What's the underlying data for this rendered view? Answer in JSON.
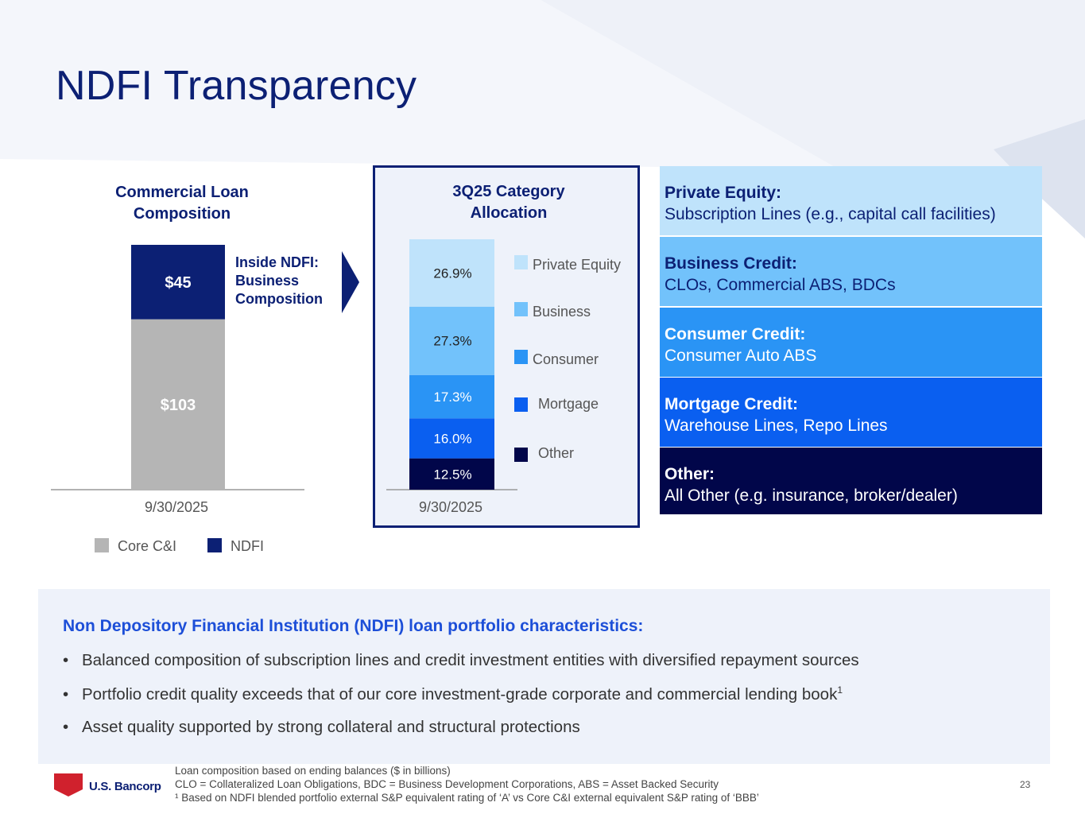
{
  "page_title": "NDFI Transparency",
  "page_number": "23",
  "logo": {
    "name": "U.S. Bancorp"
  },
  "colors": {
    "navy": "#0c2074",
    "core_gray": "#b5b5b5",
    "pe": "#bfe3fb",
    "business": "#72c2fb",
    "consumer": "#2a94f5",
    "mortgage": "#0a5ff0",
    "other": "#01064a",
    "bottom_heading": "#1d4fd8"
  },
  "chart_data": [
    {
      "type": "bar",
      "stacked": true,
      "title": "Commercial Loan Composition",
      "categories": [
        "9/30/2025"
      ],
      "series": [
        {
          "name": "Core C&I",
          "values": [
            103
          ],
          "label": "$103"
        },
        {
          "name": "NDFI",
          "values": [
            45
          ],
          "label": "$45"
        }
      ],
      "ylim": [
        0,
        148
      ],
      "annotation": "Inside NDFI: Business Composition",
      "legend": "bottom"
    },
    {
      "type": "bar",
      "stacked": true,
      "title": "3Q25 Category Allocation",
      "categories": [
        "9/30/2025"
      ],
      "series": [
        {
          "name": "Other",
          "values": [
            12.5
          ],
          "label": "12.5%"
        },
        {
          "name": "Mortgage",
          "values": [
            16.0
          ],
          "label": "16.0%"
        },
        {
          "name": "Consumer",
          "values": [
            17.3
          ],
          "label": "17.3%"
        },
        {
          "name": "Business",
          "values": [
            27.3
          ],
          "label": "27.3%"
        },
        {
          "name": "Private Equity",
          "values": [
            26.9
          ],
          "label": "26.9%"
        }
      ],
      "ylim": [
        0,
        100
      ],
      "legend": "right"
    }
  ],
  "chart1": {
    "title_line1": "Commercial Loan",
    "title_line2": "Composition",
    "xlabel": "9/30/2025",
    "side_line1": "Inside NDFI:",
    "side_line2": "Business",
    "side_line3": "Composition",
    "legend": [
      "Core C&I",
      "NDFI"
    ]
  },
  "chart2": {
    "title_line1": "3Q25 Category",
    "title_line2": "Allocation",
    "xlabel": "9/30/2025",
    "legend": [
      "Private Equity",
      "Business",
      "Consumer",
      "Mortgage",
      "Other"
    ]
  },
  "categories": [
    {
      "heading": "Private Equity:",
      "text": "Subscription Lines (e.g., capital call facilities)"
    },
    {
      "heading": "Business Credit:",
      "text": "CLOs, Commercial ABS, BDCs"
    },
    {
      "heading": "Consumer Credit:",
      "text": "Consumer Auto ABS"
    },
    {
      "heading": "Mortgage Credit:",
      "text": "Warehouse Lines, Repo Lines"
    },
    {
      "heading": "Other:",
      "text": "All Other (e.g. insurance, broker/dealer)"
    }
  ],
  "characteristics": {
    "heading": "Non Depository Financial Institution (NDFI) loan portfolio characteristics:",
    "bullets": [
      "Balanced composition of subscription lines and credit investment entities with diversified repayment sources",
      "Portfolio credit quality exceeds that of our core investment-grade corporate and commercial lending book",
      "Asset quality supported by strong collateral and structural protections"
    ],
    "bullet2_sup": "1"
  },
  "footnotes": [
    "Loan composition based on ending balances ($ in billions)",
    "CLO = Collateralized Loan Obligations, BDC = Business Development Corporations, ABS = Asset Backed Security",
    "¹ Based on NDFI blended portfolio external S&P equivalent rating of ‘A’ vs Core C&I external equivalent S&P rating of ‘BBB’"
  ]
}
